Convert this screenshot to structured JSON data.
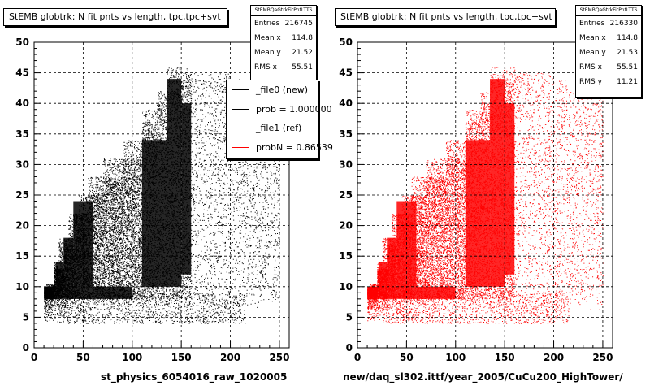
{
  "chart_data": [
    {
      "type": "scatter",
      "title": "StEMB globtrk: N fit pnts vs length, tpc,tpc+svt",
      "xlabel": "st_physics_6054016_raw_1020005",
      "ylabel": "",
      "xlim": [
        0,
        260
      ],
      "ylim": [
        0,
        50
      ],
      "xticks": [
        "0",
        "50",
        "100",
        "150",
        "200",
        "250"
      ],
      "yticks": [
        "0",
        "5",
        "10",
        "15",
        "20",
        "25",
        "30",
        "35",
        "40",
        "45",
        "50"
      ],
      "grid": true,
      "marker_color": "#000000",
      "stats": {
        "name": "StEMBQaGtrkFitPntLTTS",
        "rows": [
          {
            "label": "Entries",
            "value": "216745"
          },
          {
            "label": "Mean x",
            "value": "114.8"
          },
          {
            "label": "Mean y",
            "value": "21.52"
          },
          {
            "label": "RMS x",
            "value": "55.51"
          }
        ]
      },
      "legend": {
        "placement": "top-right",
        "entries": [
          {
            "label": "_file0 (new)",
            "color": "#000000"
          },
          {
            "label": "prob = 1.000000",
            "color": "#000000"
          },
          {
            "label": "_file1 (ref)",
            "color": "#ff0000"
          },
          {
            "label": "probN = 0.86539",
            "color": "#ff0000"
          }
        ]
      }
    },
    {
      "type": "scatter",
      "title": "StEMB globtrk: N fit pnts vs length, tpc,tpc+svt",
      "xlabel": "new/daq_sl302.ittf/year_2005/CuCu200_HighTower/",
      "ylabel": "",
      "xlim": [
        0,
        260
      ],
      "ylim": [
        0,
        50
      ],
      "xticks": [
        "0",
        "50",
        "100",
        "150",
        "200",
        "250"
      ],
      "yticks": [
        "0",
        "5",
        "10",
        "15",
        "20",
        "25",
        "30",
        "35",
        "40",
        "45",
        "50"
      ],
      "grid": true,
      "marker_color": "#ff0000",
      "stats": {
        "name": "StEMBQaGtrkFitPntLTTS",
        "rows": [
          {
            "label": "Entries",
            "value": "216330"
          },
          {
            "label": "Mean x",
            "value": "114.8"
          },
          {
            "label": "Mean y",
            "value": "21.53"
          },
          {
            "label": "RMS x",
            "value": "55.51"
          },
          {
            "label": "RMS y",
            "value": "11.21"
          }
        ]
      }
    }
  ]
}
